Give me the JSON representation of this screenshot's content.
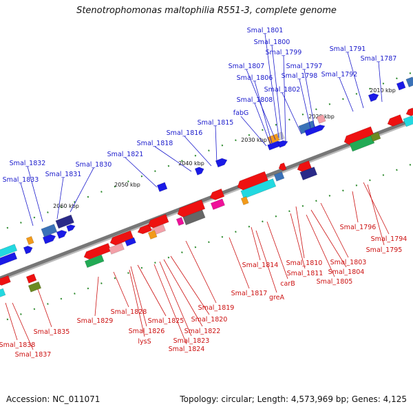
{
  "title": "Stenotrophomonas maltophilia R551-3, complete genome",
  "footer": {
    "accession": "Accession: NC_011071",
    "summary": "Topology: circular; Length: 4,573,969 bp; Genes: 4,125"
  },
  "colors": {
    "forward_label": "#1a1acc",
    "reverse_label": "#cc1111",
    "backbone": "#777777",
    "tick": "#2e8b2e",
    "red": "#ee1111",
    "blue": "#1a1ae6",
    "cyan": "#22d8e0",
    "green": "#22aa55",
    "olive": "#6b8a22",
    "navy": "#2a2a88",
    "gray": "#666666",
    "magenta": "#ee1199",
    "pink": "#f2a0a8",
    "orange": "#f29a1a",
    "steel": "#3a72b8"
  },
  "scale_labels": [
    {
      "text": "2010 kbp"
    },
    {
      "text": "2020 kbp"
    },
    {
      "text": "2030 kbp"
    },
    {
      "text": "2040 kbp"
    },
    {
      "text": "2050 kbp"
    },
    {
      "text": "2060 kbp"
    }
  ],
  "forward_genes": [
    {
      "label": "Smal_1801"
    },
    {
      "label": "Smal_1800"
    },
    {
      "label": "Smal_1799"
    },
    {
      "label": "Smal_1791"
    },
    {
      "label": "Smal_1787"
    },
    {
      "label": "Smal_1797"
    },
    {
      "label": "Smal_1807"
    },
    {
      "label": "Smal_1798"
    },
    {
      "label": "Smal_1792"
    },
    {
      "label": "Smal_1806"
    },
    {
      "label": "Smal_1802"
    },
    {
      "label": "Smal_1808"
    },
    {
      "label": "fabG"
    },
    {
      "label": "Smal_1815"
    },
    {
      "label": "Smal_1816"
    },
    {
      "label": "Smal_1818"
    },
    {
      "label": "Smal_1821"
    },
    {
      "label": "Smal_1832"
    },
    {
      "label": "Smal_1830"
    },
    {
      "label": "Smal_1831"
    },
    {
      "label": "Smal_1833"
    }
  ],
  "reverse_genes": [
    {
      "label": "Smal_1796"
    },
    {
      "label": "Smal_1794"
    },
    {
      "label": "Smal_1795"
    },
    {
      "label": "Smal_1803"
    },
    {
      "label": "Smal_1814"
    },
    {
      "label": "Smal_1810"
    },
    {
      "label": "Smal_1811"
    },
    {
      "label": "Smal_1804"
    },
    {
      "label": "carB"
    },
    {
      "label": "Smal_1805"
    },
    {
      "label": "Smal_1817"
    },
    {
      "label": "greA"
    },
    {
      "label": "Smal_1819"
    },
    {
      "label": "Smal_1828"
    },
    {
      "label": "Smal_1820"
    },
    {
      "label": "Smal_1829"
    },
    {
      "label": "Smal_1825"
    },
    {
      "label": "Smal_1826"
    },
    {
      "label": "Smal_1822"
    },
    {
      "label": "lysS"
    },
    {
      "label": "Smal_1823"
    },
    {
      "label": "Smal_1835"
    },
    {
      "label": "Smal_1824"
    },
    {
      "label": "Smal_1838"
    },
    {
      "label": "Smal_1837"
    }
  ]
}
